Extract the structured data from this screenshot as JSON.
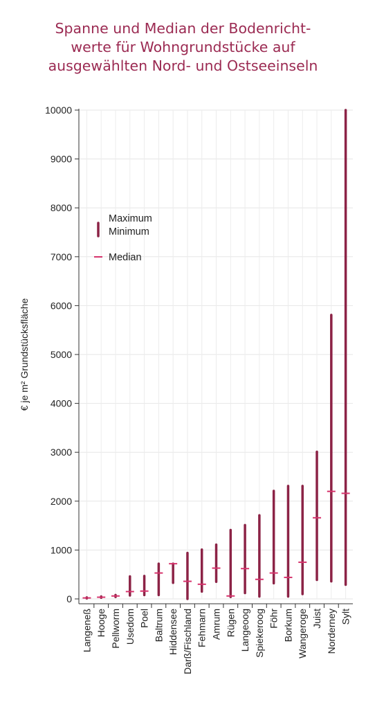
{
  "chart_data": {
    "type": "range",
    "title_lines": [
      "Spanne und Median der Bodenricht-",
      "werte für Wohngrundstücke auf",
      "ausgewählten Nord- und Ostseeinseln"
    ],
    "ylabel": "€ je m² Grundstücksfläche",
    "ylim": [
      0,
      10000
    ],
    "yticks": [
      0,
      1000,
      2000,
      3000,
      4000,
      5000,
      6000,
      7000,
      8000,
      9000,
      10000
    ],
    "grid": true,
    "legend_position": "top-left",
    "legend": {
      "range_label_max": "Maximum",
      "range_label_min": "Minimum",
      "median_label": "Median"
    },
    "colors": {
      "range": "#8c2346",
      "median": "#d6336c",
      "title": "#9b2a52"
    },
    "categories": [
      "Langeneß",
      "Hooge",
      "Pellworm",
      "Usedom",
      "Poel",
      "Baltrum",
      "Hiddensee",
      "Darß/Fischland",
      "Fehmarn",
      "Amrum",
      "Rügen",
      "Langeoog",
      "Spiekeroog",
      "Föhr",
      "Borkum",
      "Wangeroge",
      "Juist",
      "Norderney",
      "Sylt"
    ],
    "min": [
      10,
      25,
      40,
      70,
      80,
      80,
      330,
      0,
      150,
      350,
      40,
      120,
      50,
      320,
      50,
      100,
      390,
      360,
      290
    ],
    "max": [
      30,
      50,
      80,
      460,
      470,
      720,
      720,
      940,
      1010,
      1110,
      1410,
      1510,
      1710,
      2210,
      2310,
      2310,
      3010,
      5810,
      10000
    ],
    "median": [
      20,
      35,
      60,
      150,
      160,
      530,
      720,
      360,
      300,
      630,
      60,
      620,
      400,
      530,
      440,
      750,
      1660,
      2200,
      2160
    ]
  }
}
